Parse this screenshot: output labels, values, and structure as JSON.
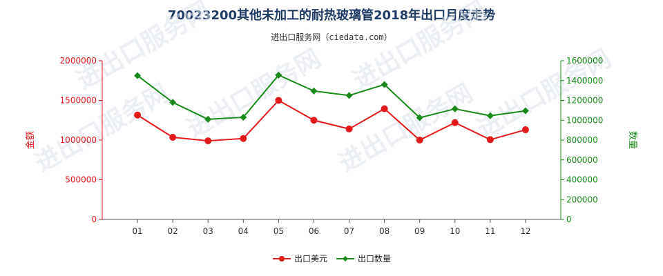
{
  "title": "70023200其他未加工的耐热玻璃管2018年出口月度走势",
  "subtitle": "进出口服务网（ciedata.com）",
  "watermark": "进出口服务网",
  "chart_data": {
    "type": "line",
    "categories": [
      "01",
      "02",
      "03",
      "04",
      "05",
      "06",
      "07",
      "08",
      "09",
      "10",
      "11",
      "12"
    ],
    "series": [
      {
        "name": "出口美元",
        "axis": "left",
        "color": "#e31a1c",
        "marker": "circle",
        "values": [
          1315000,
          1035000,
          990000,
          1020000,
          1500000,
          1250000,
          1140000,
          1395000,
          1000000,
          1220000,
          1005000,
          1130000
        ]
      },
      {
        "name": "出口数量",
        "axis": "right",
        "color": "#1a8a1a",
        "marker": "diamond",
        "values": [
          1450000,
          1180000,
          1010000,
          1030000,
          1455000,
          1295000,
          1250000,
          1360000,
          1025000,
          1115000,
          1045000,
          1095000
        ]
      }
    ],
    "y_left": {
      "label": "金额",
      "min": 0,
      "max": 2000000,
      "ticks": [
        "0",
        "500000",
        "1000000",
        "1500000",
        "2000000"
      ],
      "color": "#e31a1c"
    },
    "y_right": {
      "label": "数量",
      "min": 0,
      "max": 1600000,
      "ticks": [
        "0",
        "200000",
        "400000",
        "600000",
        "800000",
        "1000000",
        "1200000",
        "1400000",
        "1600000"
      ],
      "color": "#1a8a1a"
    },
    "legend_position": "bottom",
    "grid": false
  }
}
